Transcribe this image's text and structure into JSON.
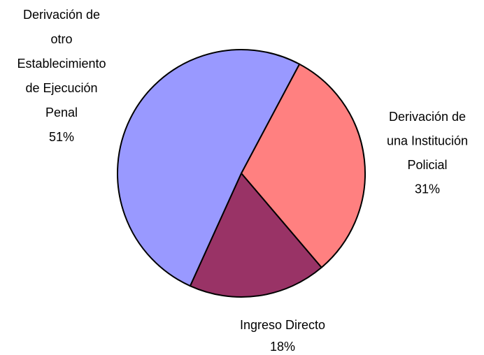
{
  "chart_data": {
    "type": "pie",
    "categories": [
      [
        "Derivación de",
        "una Institución",
        "Policial"
      ],
      [
        "Ingreso Directo"
      ],
      [
        "Derivación de",
        "otro",
        "Establecimiento",
        "de Ejecución",
        "Penal"
      ]
    ],
    "values": [
      31,
      18,
      51
    ],
    "value_labels": [
      "31%",
      "18%",
      "51%"
    ],
    "colors": [
      "#FF8080",
      "#993366",
      "#9999FF"
    ]
  }
}
